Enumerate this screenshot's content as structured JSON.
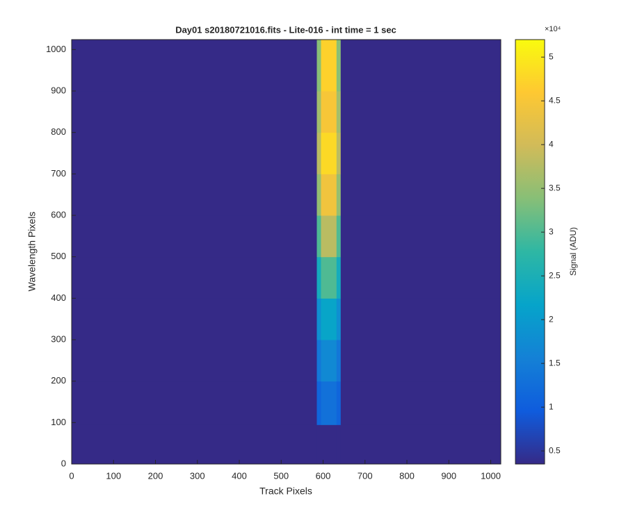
{
  "chart_data": {
    "type": "heatmap",
    "title": "Day01  s20180721016.fits - Lite-016 - int time = 1 sec",
    "x_label": "Track Pixels",
    "y_label": "Wavelength Pixels",
    "colorbar_label": "Signal (ADU)",
    "colorbar_exponent": "×10⁴",
    "x_edges": [
      0,
      585,
      595,
      632,
      642,
      1024
    ],
    "y_edges": [
      0,
      95,
      200,
      300,
      400,
      500,
      600,
      700,
      800,
      900,
      1024
    ],
    "z": [
      [
        3500,
        3500,
        3500,
        3500,
        3500
      ],
      [
        3500,
        11000,
        13000,
        11000,
        3500
      ],
      [
        3500,
        14000,
        17000,
        14000,
        3500
      ],
      [
        3500,
        18000,
        22000,
        18000,
        3500
      ],
      [
        3500,
        24000,
        30000,
        24000,
        3500
      ],
      [
        3500,
        30000,
        38000,
        30000,
        3500
      ],
      [
        3500,
        35000,
        44000,
        35000,
        3500
      ],
      [
        3500,
        38000,
        48000,
        38000,
        3500
      ],
      [
        3500,
        36000,
        45000,
        36000,
        3500
      ],
      [
        3500,
        34000,
        47000,
        34000,
        3500
      ]
    ],
    "xlim": [
      0,
      1024
    ],
    "ylim": [
      0,
      1024
    ],
    "xticks": [
      0,
      100,
      200,
      300,
      400,
      500,
      600,
      700,
      800,
      900,
      1000
    ],
    "yticks": [
      0,
      100,
      200,
      300,
      400,
      500,
      600,
      700,
      800,
      900,
      1000
    ],
    "clim": [
      3500,
      52000
    ],
    "cticks": [
      {
        "value": 5000,
        "label": "0.5"
      },
      {
        "value": 10000,
        "label": "1"
      },
      {
        "value": 15000,
        "label": "1.5"
      },
      {
        "value": 20000,
        "label": "2"
      },
      {
        "value": 25000,
        "label": "2.5"
      },
      {
        "value": 30000,
        "label": "3"
      },
      {
        "value": 35000,
        "label": "3.5"
      },
      {
        "value": 40000,
        "label": "4"
      },
      {
        "value": 45000,
        "label": "4.5"
      },
      {
        "value": 50000,
        "label": "5"
      }
    ],
    "colormap": [
      "#352a87",
      "#0f5cdd",
      "#1481d6",
      "#06a4ca",
      "#2eb7a4",
      "#87bf77",
      "#d1bb59",
      "#fec832",
      "#f9fb0e"
    ]
  }
}
